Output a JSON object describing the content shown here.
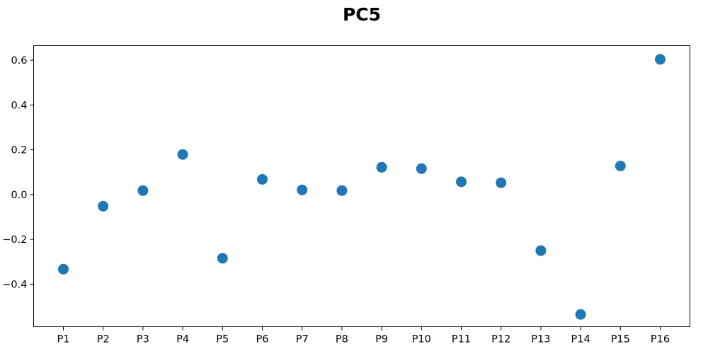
{
  "chart_data": {
    "type": "scatter",
    "title": "PC5",
    "xlabel": "",
    "ylabel": "",
    "categories": [
      "P1",
      "P2",
      "P3",
      "P4",
      "P5",
      "P6",
      "P7",
      "P8",
      "P9",
      "P10",
      "P11",
      "P12",
      "P13",
      "P14",
      "P15",
      "P16"
    ],
    "values": [
      -0.333,
      -0.052,
      0.018,
      0.179,
      -0.284,
      0.068,
      0.021,
      0.018,
      0.122,
      0.116,
      0.057,
      0.053,
      -0.25,
      -0.535,
      0.128,
      0.604
    ],
    "ylim": [
      -0.59,
      0.665
    ],
    "yticks": [
      -0.4,
      -0.2,
      0.0,
      0.2,
      0.4,
      0.6
    ],
    "ytick_labels": [
      "−0.4",
      "−0.2",
      "0.0",
      "0.2",
      "0.4",
      "0.6"
    ],
    "grid": false,
    "legend": "none",
    "marker_color": "#1f77b4"
  }
}
